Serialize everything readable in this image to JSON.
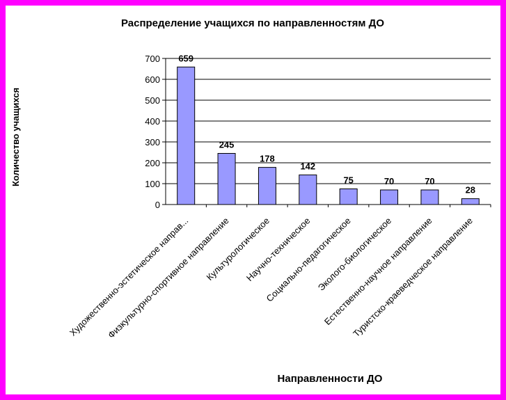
{
  "chart_data": {
    "type": "bar",
    "title": "Распределение учащихся по направленностям ДО",
    "xlabel": "Направленности ДО",
    "ylabel": "Количество учащихся",
    "categories": [
      "Художественно-эстетическое направ...",
      "Физкультурно-спортивное направление",
      "Культурологическое",
      "Научно-техническое",
      "Социально-педагогическое",
      "Эколого-биологическое",
      "Естественно-научное направление",
      "Туристско-краеведческое направление"
    ],
    "values": [
      659,
      245,
      178,
      142,
      75,
      70,
      70,
      28
    ],
    "ylim": [
      0,
      700
    ],
    "yticks": [
      0,
      100,
      200,
      300,
      400,
      500,
      600,
      700
    ],
    "grid": true,
    "legend": "none",
    "bar_color": "#9999ff",
    "bar_edge_color": "#000000",
    "frame_color": "#ff00ff"
  }
}
